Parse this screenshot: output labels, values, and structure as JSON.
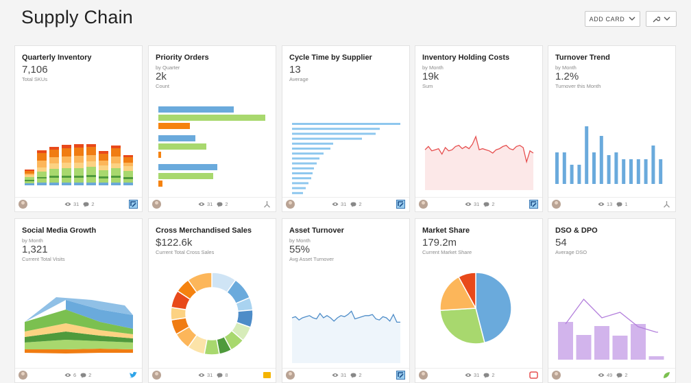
{
  "page": {
    "title": "Supply Chain"
  },
  "toolbar": {
    "add_card_label": "ADD CARD"
  },
  "colors": {
    "blue": "#6aaadc",
    "green": "#a8d86e",
    "orange": "#f5820f",
    "red": "#e64e4e",
    "purple": "#d2b4ec",
    "gray": "#888888"
  },
  "cards": [
    {
      "title": "Quarterly Inventory",
      "subtitle_top": "",
      "value": "7,106",
      "subtitle": "Total SKUs",
      "views": "31",
      "comments": "2",
      "source_icon": "domo-icon",
      "chart_data": {
        "type": "bar",
        "title": "",
        "stacked": true,
        "categories": [
          "1",
          "2",
          "3",
          "4",
          "5",
          "6",
          "7",
          "8",
          "9"
        ],
        "series": [
          {
            "color": "#6aa8d8",
            "values": [
              3,
              4,
              4,
              4,
              4,
              4,
              4,
              4,
              4
            ]
          },
          {
            "color": "#a8d86e",
            "values": [
              3,
              6,
              7,
              7,
              7,
              8,
              6,
              7,
              5
            ]
          },
          {
            "color": "#4f9a3c",
            "values": [
              2,
              2,
              3,
              3,
              3,
              3,
              3,
              3,
              3
            ]
          },
          {
            "color": "#a8d86e",
            "values": [
              4,
              8,
              10,
              11,
              11,
              12,
              9,
              11,
              9
            ]
          },
          {
            "color": "#fcd282",
            "values": [
              3,
              6,
              8,
              8,
              8,
              8,
              7,
              7,
              7
            ]
          },
          {
            "color": "#fcb65a",
            "values": [
              2,
              10,
              9,
              9,
              10,
              9,
              7,
              10,
              5
            ]
          },
          {
            "color": "#f07c12",
            "values": [
              4,
              11,
              11,
              12,
              12,
              12,
              10,
              12,
              8
            ]
          },
          {
            "color": "#e8491a",
            "values": [
              2,
              4,
              4,
              5,
              5,
              4,
              4,
              4,
              3
            ]
          }
        ]
      }
    },
    {
      "title": "Priority Orders",
      "subtitle_top": "by Quarter",
      "value": "2k",
      "subtitle": "Count",
      "views": "31",
      "comments": "2",
      "source_icon": "connector-icon",
      "chart_data": {
        "type": "bar",
        "title": "",
        "orientation": "horizontal",
        "groups": 3,
        "values": [
          110,
          156,
          46,
          54,
          70,
          4,
          86,
          80,
          6
        ],
        "colors": [
          "#6aaadc",
          "#a8d86e",
          "#f5820f",
          "#6aaadc",
          "#a8d86e",
          "#f5820f",
          "#6aaadc",
          "#a8d86e",
          "#f5820f"
        ]
      }
    },
    {
      "title": "Cycle Time by Supplier",
      "subtitle_top": "",
      "value": "13",
      "subtitle": "Average",
      "views": "31",
      "comments": "2",
      "source_icon": "domo-icon",
      "chart_data": {
        "type": "bar",
        "title": "",
        "orientation": "horizontal",
        "values": [
          158,
          128,
          122,
          102,
          60,
          56,
          46,
          40,
          36,
          32,
          30,
          28,
          24,
          20,
          16,
          12,
          10
        ],
        "colors": [
          "#8ec7ee"
        ]
      }
    },
    {
      "title": "Inventory Holding Costs",
      "subtitle_top": "by Month",
      "value": "19k",
      "subtitle": "Sum",
      "views": "31",
      "comments": "2",
      "source_icon": "domo-icon",
      "chart_data": {
        "type": "area",
        "title": "",
        "values": [
          13,
          16,
          12,
          13,
          14,
          9,
          15,
          12,
          13,
          16,
          17,
          14,
          16,
          14,
          18,
          25,
          13,
          14,
          13,
          12,
          10,
          13,
          14,
          16,
          17,
          14,
          13,
          16,
          17,
          15,
          2,
          12,
          10
        ],
        "line_color": "#e64e4e",
        "fill_color": "#fce8e8"
      }
    },
    {
      "title": "Turnover Trend",
      "subtitle_top": "by Month",
      "value": "1.2%",
      "subtitle": "Turnover this Month",
      "views": "13",
      "comments": "1",
      "source_icon": "connector-icon",
      "chart_data": {
        "type": "bar",
        "title": "",
        "values": [
          46,
          46,
          28,
          28,
          84,
          46,
          70,
          42,
          46,
          36,
          36,
          36,
          36,
          56,
          36
        ],
        "colors": [
          "#6aaadc"
        ]
      }
    },
    {
      "title": "Social Media Growth",
      "subtitle_top": "by Month",
      "value": "1,321",
      "subtitle": "Current Total Visits",
      "views": "6",
      "comments": "2",
      "source_icon": "twitter-icon",
      "chart_data": {
        "type": "area",
        "title": "",
        "stacked": true,
        "colors": [
          "#f07c12",
          "#a8d86e",
          "#4f9a3c",
          "#fcd282",
          "#7bc050",
          "#6aaadc",
          "#90c0e6"
        ]
      }
    },
    {
      "title": "Cross Merchandised Sales",
      "subtitle_top": "",
      "value": "$122.6k",
      "subtitle": "Current Total Cross Sales",
      "views": "31",
      "comments": "8",
      "source_icon": "file-icon",
      "chart_data": {
        "type": "pie",
        "title": "",
        "values": [
          10,
          9,
          5,
          7,
          6,
          6,
          5,
          6,
          7,
          7,
          6,
          5,
          7,
          6,
          10
        ],
        "colors": [
          "#cfe4f5",
          "#6aaadc",
          "#a9d3f0",
          "#4d8cc8",
          "#d7ecba",
          "#a8d86e",
          "#4f9a3c",
          "#a8d86e",
          "#fce3a8",
          "#fcb65a",
          "#f07c12",
          "#fcd282",
          "#e8491a",
          "#f5820f",
          "#fcb65a"
        ]
      }
    },
    {
      "title": "Asset Turnover",
      "subtitle_top": "by Month",
      "value": "55%",
      "subtitle": "Avg Asset Turnover",
      "views": "31",
      "comments": "2",
      "source_icon": "domo-icon",
      "chart_data": {
        "type": "area",
        "title": "",
        "values": [
          14,
          15,
          12,
          14,
          15,
          16,
          14,
          13,
          18,
          14,
          16,
          14,
          11,
          14,
          16,
          15,
          17,
          20,
          13,
          14,
          15,
          16,
          16,
          17,
          13,
          12,
          15,
          14,
          11,
          17,
          10,
          10
        ],
        "line_color": "#4d8cc8",
        "fill_color": "#eef5fb"
      }
    },
    {
      "title": "Market Share",
      "subtitle_top": "",
      "value": "179.2m",
      "subtitle": "Current Market Share",
      "views": "31",
      "comments": "2",
      "source_icon": "report-icon",
      "chart_data": {
        "type": "pie",
        "title": "",
        "values": [
          46,
          28,
          18,
          8
        ],
        "colors": [
          "#6aaadc",
          "#a8d86e",
          "#fcb65a",
          "#e8491a"
        ]
      }
    },
    {
      "title": "DSO & DPO",
      "subtitle_top": "",
      "value": "54",
      "subtitle": "Average DSO",
      "views": "49",
      "comments": "2",
      "source_icon": "leaf-icon",
      "chart_data": {
        "type": "bar",
        "title": "",
        "categories": [
          "1",
          "2",
          "3",
          "4",
          "5",
          "6"
        ],
        "series": [
          {
            "type": "bar",
            "color": "#d2b4ec",
            "values": [
              55,
              36,
              49,
              35,
              52,
              5
            ]
          },
          {
            "type": "line",
            "color": "#b37fdc",
            "values": [
              52,
              88,
              61,
              69,
              48,
              40
            ]
          }
        ]
      }
    }
  ]
}
